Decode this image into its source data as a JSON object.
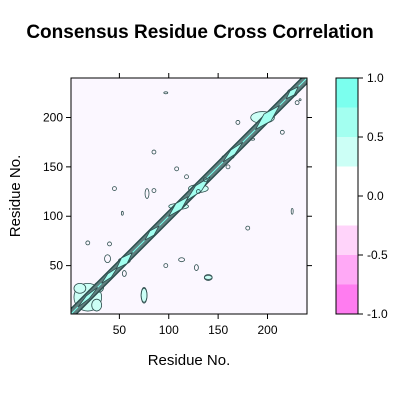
{
  "chart_data": {
    "type": "heatmap",
    "subtype": "contour",
    "title": "Consensus Residue Cross Correlation",
    "xlabel": "Residue No.",
    "ylabel": "Residue No.",
    "xlim": [
      1,
      240
    ],
    "ylim": [
      1,
      240
    ],
    "x_ticks": [
      50,
      100,
      150,
      200
    ],
    "y_ticks": [
      50,
      100,
      150,
      200
    ],
    "background_color": "#fbf7ff",
    "contour_line_color": "#2f4f4f",
    "diagonal_color": "#5f7f7f",
    "colorkey": {
      "levels": [
        -1.0,
        -0.75,
        -0.5,
        -0.25,
        0.0,
        0.25,
        0.5,
        0.75,
        1.0
      ],
      "colors": [
        "#ff7cf0",
        "#ffa9f6",
        "#ffd4fa",
        "#ffffff",
        "#ffffff",
        "#ccfff6",
        "#a3fff0",
        "#7bffee"
      ],
      "tick_labels": [
        "-1.0",
        "-0.5",
        "0.0",
        "0.5",
        "1.0"
      ],
      "tick_values": [
        -1.0,
        -0.5,
        0.0,
        0.5,
        1.0
      ]
    },
    "diagonal_features": [
      {
        "center": [
          18,
          18
        ],
        "half_length": 10,
        "half_width": 2
      },
      {
        "center": [
          40,
          40
        ],
        "half_length": 8,
        "half_width": 2.5
      },
      {
        "center": [
          55,
          55
        ],
        "half_length": 8,
        "half_width": 4
      },
      {
        "center": [
          83,
          83
        ],
        "half_length": 7,
        "half_width": 3
      },
      {
        "center": [
          110,
          110
        ],
        "half_length": 10,
        "half_width": 4
      },
      {
        "center": [
          130,
          128
        ],
        "half_length": 12,
        "half_width": 4
      },
      {
        "center": [
          165,
          165
        ],
        "half_length": 10,
        "half_width": 3
      },
      {
        "center": [
          200,
          200
        ],
        "half_length": 12,
        "half_width": 5
      },
      {
        "center": [
          225,
          225
        ],
        "half_length": 6,
        "half_width": 3
      }
    ],
    "positive_regions": [
      {
        "x": 18,
        "y": 18,
        "rx": 14,
        "ry": 14
      },
      {
        "x": 10,
        "y": 27,
        "rx": 6,
        "ry": 5
      },
      {
        "x": 27,
        "y": 10,
        "rx": 5,
        "ry": 6
      },
      {
        "x": 29,
        "y": 28,
        "rx": 5,
        "ry": 5
      },
      {
        "x": 55,
        "y": 55,
        "rx": 6,
        "ry": 3
      },
      {
        "x": 110,
        "y": 110,
        "rx": 10,
        "ry": 3
      },
      {
        "x": 130,
        "y": 128,
        "rx": 10,
        "ry": 4
      },
      {
        "x": 160,
        "y": 160,
        "rx": 6,
        "ry": 2
      },
      {
        "x": 195,
        "y": 200,
        "rx": 12,
        "ry": 6
      },
      {
        "x": 225,
        "y": 225,
        "rx": 5,
        "ry": 4
      },
      {
        "x": 75,
        "y": 20,
        "rx": 3,
        "ry": 7
      },
      {
        "x": 140,
        "y": 38,
        "rx": 4,
        "ry": 2
      }
    ],
    "small_contours": [
      {
        "x": 75,
        "y": 20,
        "rx": 3,
        "ry": 8
      },
      {
        "x": 140,
        "y": 38,
        "rx": 4,
        "ry": 3
      },
      {
        "x": 38,
        "y": 57,
        "rx": 3,
        "ry": 4
      },
      {
        "x": 55,
        "y": 42,
        "rx": 2,
        "ry": 3
      },
      {
        "x": 18,
        "y": 73,
        "rx": 2,
        "ry": 2
      },
      {
        "x": 40,
        "y": 72,
        "rx": 2,
        "ry": 2
      },
      {
        "x": 45,
        "y": 128,
        "rx": 2,
        "ry": 2
      },
      {
        "x": 53,
        "y": 103,
        "rx": 1,
        "ry": 2
      },
      {
        "x": 78,
        "y": 123,
        "rx": 2,
        "ry": 5
      },
      {
        "x": 85,
        "y": 126,
        "rx": 2,
        "ry": 2
      },
      {
        "x": 97,
        "y": 50,
        "rx": 2,
        "ry": 2
      },
      {
        "x": 113,
        "y": 56,
        "rx": 3,
        "ry": 2
      },
      {
        "x": 128,
        "y": 48,
        "rx": 2,
        "ry": 3
      },
      {
        "x": 118,
        "y": 140,
        "rx": 2,
        "ry": 2
      },
      {
        "x": 130,
        "y": 125,
        "rx": 2,
        "ry": 2
      },
      {
        "x": 85,
        "y": 165,
        "rx": 2,
        "ry": 2
      },
      {
        "x": 97,
        "y": 225,
        "rx": 2,
        "ry": 1
      },
      {
        "x": 108,
        "y": 148,
        "rx": 2,
        "ry": 2
      },
      {
        "x": 180,
        "y": 88,
        "rx": 2,
        "ry": 2
      },
      {
        "x": 160,
        "y": 150,
        "rx": 2,
        "ry": 2
      },
      {
        "x": 185,
        "y": 178,
        "rx": 2,
        "ry": 1
      },
      {
        "x": 225,
        "y": 105,
        "rx": 1,
        "ry": 3
      },
      {
        "x": 215,
        "y": 185,
        "rx": 2,
        "ry": 2
      },
      {
        "x": 230,
        "y": 215,
        "rx": 2,
        "ry": 2
      },
      {
        "x": 233,
        "y": 218,
        "rx": 1,
        "ry": 1
      },
      {
        "x": 170,
        "y": 195,
        "rx": 2,
        "ry": 2
      },
      {
        "x": 137,
        "y": 137,
        "rx": 2,
        "ry": 2
      }
    ]
  }
}
